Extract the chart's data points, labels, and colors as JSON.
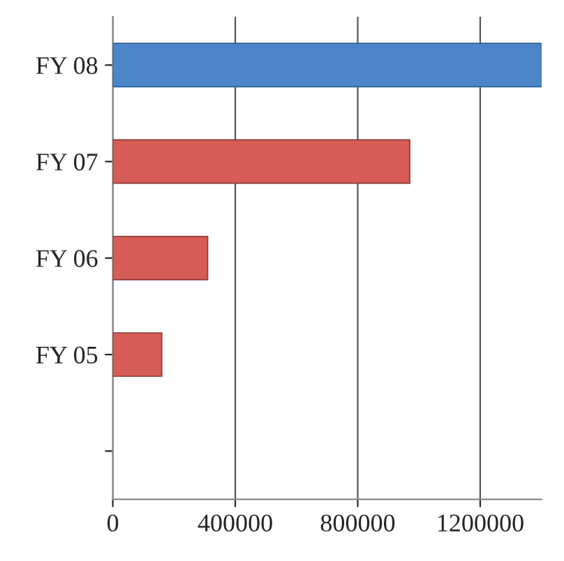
{
  "chart_data": {
    "type": "bar",
    "orientation": "horizontal",
    "categories": [
      "FY 08",
      "FY 07",
      "FY 06",
      "FY 05",
      null
    ],
    "values": [
      1400000,
      970000,
      310000,
      160000,
      null
    ],
    "colors": [
      "#4a86c8",
      "#d65c56",
      "#d65c56",
      "#d65c56",
      "#d65c56"
    ],
    "xlim": [
      0,
      1400000
    ],
    "xticks": [
      0,
      400000,
      800000,
      1200000
    ],
    "grid": "x"
  }
}
